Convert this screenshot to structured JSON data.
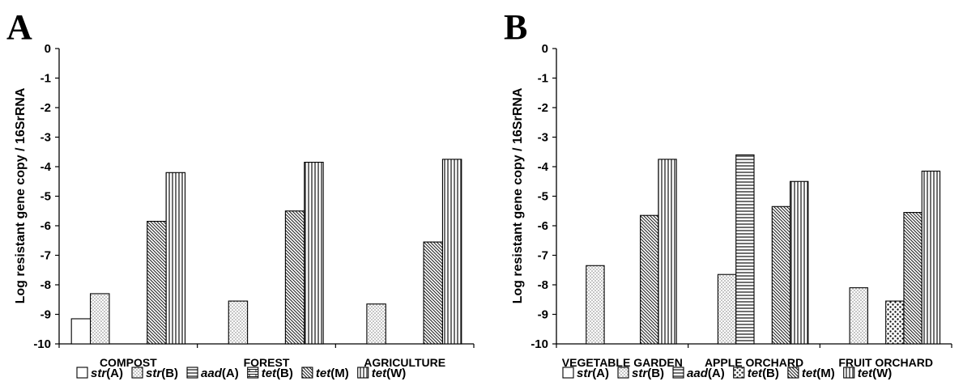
{
  "chart_data": [
    {
      "type": "bar",
      "panel_label": "A",
      "ylabel": "Log resistant gene copy / 16SrRNA",
      "ylim": [
        -10,
        0
      ],
      "yticks": [
        "0",
        "-1",
        "-2",
        "-3",
        "-4",
        "-5",
        "-6",
        "-7",
        "-8",
        "-9",
        "-10"
      ],
      "baseline": -10,
      "grid": false,
      "legend_position": "bottom",
      "categories": [
        "COMPOST",
        "FOREST",
        "AGRICULTURE"
      ],
      "series": [
        {
          "name": "str(A)",
          "name_gene": "str",
          "name_suffix": "(A)",
          "pattern": "open",
          "values": [
            -9.15,
            null,
            null
          ]
        },
        {
          "name": "str(B)",
          "name_gene": "str",
          "name_suffix": "(B)",
          "pattern": "dots",
          "values": [
            -8.3,
            -8.55,
            -8.65
          ]
        },
        {
          "name": "aad(A)",
          "name_gene": "aad",
          "name_suffix": "(A)",
          "pattern": "horizontal",
          "values": [
            null,
            null,
            null
          ]
        },
        {
          "name": "tet(B)",
          "name_gene": "tet",
          "name_suffix": "(B)",
          "pattern": "bricks",
          "values": [
            null,
            null,
            null
          ]
        },
        {
          "name": "tet(M)",
          "name_gene": "tet",
          "name_suffix": "(M)",
          "pattern": "diagonal",
          "values": [
            -5.85,
            -5.5,
            -6.55
          ]
        },
        {
          "name": "tet(W)",
          "name_gene": "tet",
          "name_suffix": "(W)",
          "pattern": "vertical",
          "values": [
            -4.2,
            -3.85,
            -3.75
          ]
        }
      ]
    },
    {
      "type": "bar",
      "panel_label": "B",
      "ylabel": "Log resistant gene copy / 16SrRNA",
      "ylim": [
        -10,
        0
      ],
      "yticks": [
        "0",
        "-1",
        "-2",
        "-3",
        "-4",
        "-5",
        "-6",
        "-7",
        "-8",
        "-9",
        "-10"
      ],
      "baseline": -10,
      "grid": false,
      "legend_position": "bottom",
      "categories": [
        "VEGETABLE GARDEN",
        "APPLE ORCHARD",
        "FRUIT ORCHARD"
      ],
      "series": [
        {
          "name": "str(A)",
          "name_gene": "str",
          "name_suffix": "(A)",
          "pattern": "open",
          "values": [
            null,
            null,
            null
          ]
        },
        {
          "name": "str(B)",
          "name_gene": "str",
          "name_suffix": "(B)",
          "pattern": "dots",
          "values": [
            -7.35,
            -7.65,
            -8.1
          ]
        },
        {
          "name": "aad(A)",
          "name_gene": "aad",
          "name_suffix": "(A)",
          "pattern": "horizontal",
          "values": [
            null,
            -3.6,
            null
          ]
        },
        {
          "name": "tet(B)",
          "name_gene": "tet",
          "name_suffix": "(B)",
          "pattern": "bricks",
          "values": [
            null,
            null,
            -8.55
          ]
        },
        {
          "name": "tet(M)",
          "name_gene": "tet",
          "name_suffix": "(M)",
          "pattern": "diagonal",
          "values": [
            -5.65,
            -5.35,
            -5.55
          ]
        },
        {
          "name": "tet(W)",
          "name_gene": "tet",
          "name_suffix": "(W)",
          "pattern": "vertical",
          "values": [
            -3.75,
            -4.5,
            -4.15
          ]
        }
      ]
    }
  ],
  "colors": {
    "ink": "#000000",
    "fill": "#ffffff",
    "dots": "#777777",
    "pattern": "#222222"
  }
}
